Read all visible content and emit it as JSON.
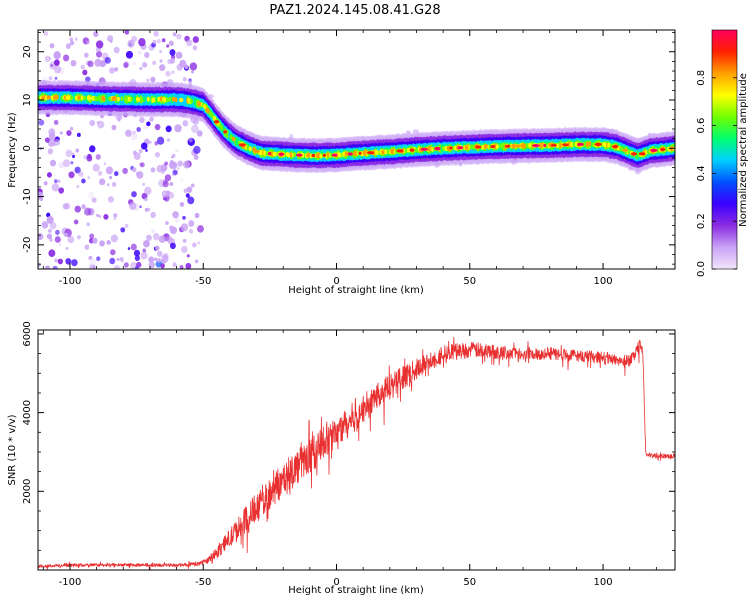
{
  "title": "PAZ1.2024.145.08.41.G28",
  "chart_data": [
    {
      "type": "heatmap",
      "xlabel": "Height of straight line (km)",
      "ylabel": "Frequency (Hz)",
      "xlim": [
        -112,
        127
      ],
      "ylim": [
        -25,
        24.5
      ],
      "xticks": [
        "-100",
        "-50",
        "0",
        "50",
        "100"
      ],
      "xtick_values": [
        -100,
        -50,
        0,
        50,
        100
      ],
      "yticks": [
        "20",
        "10",
        "0",
        "-10",
        "-20"
      ],
      "ytick_values": [
        20,
        10,
        0,
        -10,
        -20
      ],
      "colorbar": {
        "label": "Normalized spectral amplitude",
        "range": [
          0,
          1
        ],
        "ticks": [
          "0.0",
          "0.2",
          "0.4",
          "0.6",
          "0.8"
        ],
        "tick_values": [
          0.0,
          0.2,
          0.4,
          0.6,
          0.8
        ],
        "colormap": "gist_rainbow",
        "stops": [
          "#f2e6fb",
          "#c9a2f5",
          "#8b2be2",
          "#3a00ff",
          "#0050ff",
          "#00d0ff",
          "#00ff70",
          "#70ff00",
          "#ffff00",
          "#ffa000",
          "#ff2000",
          "#ff0060"
        ]
      },
      "ridge": {
        "description_points_x": [
          -112,
          -100,
          -90,
          -80,
          -70,
          -60,
          -55,
          -50,
          -47,
          -45,
          -42,
          -38,
          -33,
          -28,
          -22,
          -15,
          -8,
          0,
          10,
          20,
          30,
          40,
          50,
          60,
          70,
          80,
          90,
          100,
          105,
          110,
          113,
          118,
          127
        ],
        "freq_hz": [
          10.5,
          10.5,
          10.3,
          10.2,
          10.1,
          10.1,
          9.8,
          9.0,
          7.0,
          5.5,
          3.5,
          1.5,
          0.0,
          -1.0,
          -1.2,
          -1.4,
          -1.5,
          -1.4,
          -1.0,
          -0.7,
          -0.3,
          0.0,
          0.2,
          0.4,
          0.5,
          0.6,
          0.8,
          0.8,
          0.3,
          -0.8,
          -1.5,
          -0.5,
          0.0
        ]
      },
      "noise_region_x": [
        -112,
        -50
      ]
    },
    {
      "type": "line",
      "xlabel": "Height of straight line (km)",
      "ylabel": "SNR (10 * v/v)",
      "xlim": [
        -112,
        127
      ],
      "ylim": [
        0,
        6100
      ],
      "xticks": [
        "-100",
        "-50",
        "0",
        "50",
        "100"
      ],
      "xtick_values": [
        -100,
        -50,
        0,
        50,
        100
      ],
      "yticks": [
        "6000",
        "4000",
        "2000"
      ],
      "ytick_values": [
        6000,
        4000,
        2000
      ],
      "series": [
        {
          "color": "#e83030",
          "x": [
            -112,
            -100,
            -80,
            -60,
            -52,
            -48,
            -45,
            -40,
            -30,
            -20,
            -10,
            0,
            10,
            20,
            30,
            40,
            50,
            60,
            70,
            80,
            90,
            100,
            110,
            114,
            115,
            116,
            120,
            127
          ],
          "y": [
            100,
            120,
            130,
            120,
            150,
            250,
            450,
            800,
            1600,
            2300,
            2900,
            3500,
            4100,
            4700,
            5100,
            5500,
            5600,
            5550,
            5500,
            5500,
            5450,
            5400,
            5300,
            5700,
            5500,
            2950,
            2900,
            2900
          ],
          "noise_amp": [
            40,
            40,
            40,
            40,
            50,
            80,
            150,
            250,
            400,
            450,
            450,
            420,
            380,
            320,
            260,
            220,
            200,
            180,
            160,
            160,
            150,
            150,
            150,
            150,
            150,
            60,
            60,
            60
          ]
        }
      ]
    }
  ]
}
